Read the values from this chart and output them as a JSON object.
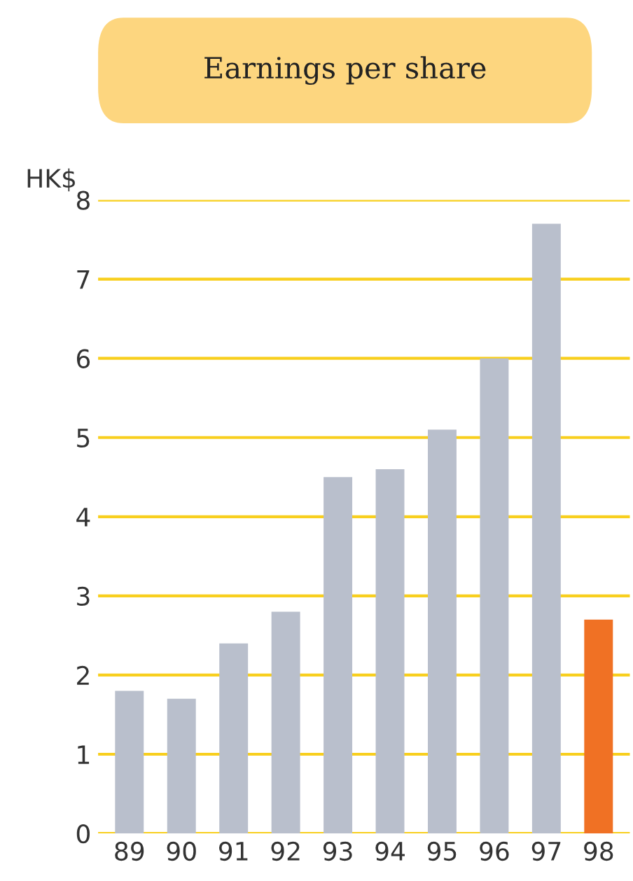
{
  "chart_data": {
    "type": "bar",
    "title": "Earnings per share",
    "ylabel": "HK$",
    "categories": [
      "89",
      "90",
      "91",
      "92",
      "93",
      "94",
      "95",
      "96",
      "97",
      "98"
    ],
    "values": [
      1.8,
      1.7,
      2.4,
      2.8,
      4.5,
      4.6,
      5.1,
      6.0,
      7.7,
      2.7
    ],
    "colors": [
      "#b9bfcc",
      "#b9bfcc",
      "#b9bfcc",
      "#b9bfcc",
      "#b9bfcc",
      "#b9bfcc",
      "#b9bfcc",
      "#b9bfcc",
      "#b9bfcc",
      "#f07124"
    ],
    "ylim": [
      0,
      8
    ],
    "yticks": [
      0,
      1,
      2,
      3,
      4,
      5,
      6,
      7,
      8
    ],
    "grid": "y"
  }
}
